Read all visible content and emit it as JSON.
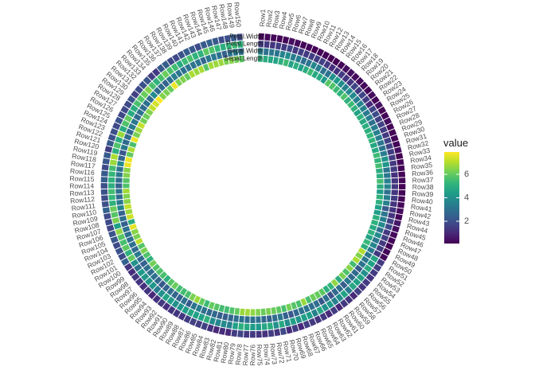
{
  "chart_data": {
    "type": "heatmap",
    "layout": "circular",
    "rows": [
      "Row1",
      "Row2",
      "Row3",
      "Row4",
      "Row5",
      "Row6",
      "Row7",
      "Row8",
      "Row9",
      "Row10",
      "Row11",
      "Row12",
      "Row13",
      "Row14",
      "Row15",
      "Row16",
      "Row17",
      "Row18",
      "Row19",
      "Row20",
      "Row21",
      "Row22",
      "Row23",
      "Row24",
      "Row25",
      "Row26",
      "Row27",
      "Row28",
      "Row29",
      "Row30",
      "Row31",
      "Row32",
      "Row33",
      "Row34",
      "Row35",
      "Row36",
      "Row37",
      "Row38",
      "Row39",
      "Row40",
      "Row41",
      "Row42",
      "Row43",
      "Row44",
      "Row45",
      "Row46",
      "Row47",
      "Row48",
      "Row49",
      "Row50",
      "Row51",
      "Row52",
      "Row53",
      "Row54",
      "Row55",
      "Row56",
      "Row57",
      "Row58",
      "Row59",
      "Row60",
      "Row61",
      "Row62",
      "Row63",
      "Row64",
      "Row65",
      "Row66",
      "Row67",
      "Row68",
      "Row69",
      "Row70",
      "Row71",
      "Row72",
      "Row73",
      "Row74",
      "Row75",
      "Row76",
      "Row77",
      "Row78",
      "Row79",
      "Row80",
      "Row81",
      "Row82",
      "Row83",
      "Row84",
      "Row85",
      "Row86",
      "Row87",
      "Row88",
      "Row89",
      "Row90",
      "Row91",
      "Row92",
      "Row93",
      "Row94",
      "Row95",
      "Row96",
      "Row97",
      "Row98",
      "Row99",
      "Row100",
      "Row101",
      "Row102",
      "Row103",
      "Row104",
      "Row105",
      "Row106",
      "Row107",
      "Row108",
      "Row109",
      "Row110",
      "Row111",
      "Row112",
      "Row113",
      "Row114",
      "Row115",
      "Row116",
      "Row117",
      "Row118",
      "Row119",
      "Row120",
      "Row121",
      "Row122",
      "Row123",
      "Row124",
      "Row125",
      "Row126",
      "Row127",
      "Row128",
      "Row129",
      "Row130",
      "Row131",
      "Row132",
      "Row133",
      "Row134",
      "Row135",
      "Row136",
      "Row137",
      "Row138",
      "Row139",
      "Row140",
      "Row141",
      "Row142",
      "Row143",
      "Row144",
      "Row145",
      "Row146",
      "Row147",
      "Row148",
      "Row149",
      "Row150"
    ],
    "series": [
      {
        "name": "Sepal.Length",
        "values": [
          5.1,
          4.9,
          4.7,
          4.6,
          5.0,
          5.4,
          4.6,
          5.0,
          4.4,
          4.9,
          5.4,
          4.8,
          4.8,
          4.3,
          5.8,
          5.7,
          5.4,
          5.1,
          5.7,
          5.1,
          5.4,
          5.1,
          4.6,
          5.1,
          4.8,
          5.0,
          5.0,
          5.2,
          5.2,
          4.7,
          4.8,
          5.4,
          5.2,
          5.5,
          4.9,
          5.0,
          5.5,
          4.9,
          4.4,
          5.1,
          5.0,
          4.5,
          4.4,
          5.0,
          5.1,
          4.8,
          5.1,
          4.6,
          5.3,
          5.0,
          7.0,
          6.4,
          6.9,
          5.5,
          6.5,
          5.7,
          6.3,
          4.9,
          6.6,
          5.2,
          5.0,
          5.9,
          6.0,
          6.1,
          5.6,
          6.7,
          5.6,
          5.8,
          6.2,
          5.6,
          5.9,
          6.1,
          6.3,
          6.1,
          6.4,
          6.6,
          6.8,
          6.7,
          6.0,
          5.7,
          5.5,
          5.5,
          5.8,
          6.0,
          5.4,
          6.0,
          6.7,
          6.3,
          5.6,
          5.5,
          5.5,
          6.1,
          5.8,
          5.0,
          5.6,
          5.7,
          5.7,
          6.2,
          5.1,
          5.7,
          6.3,
          5.8,
          7.1,
          6.3,
          6.5,
          7.6,
          4.9,
          7.3,
          6.7,
          7.2,
          6.5,
          6.4,
          6.8,
          5.7,
          5.8,
          6.4,
          6.5,
          7.7,
          7.7,
          6.0,
          6.9,
          5.6,
          7.7,
          6.3,
          6.7,
          7.2,
          6.2,
          6.1,
          6.4,
          7.2,
          7.4,
          7.9,
          6.4,
          6.3,
          6.1,
          7.7,
          6.3,
          6.4,
          6.0,
          6.9,
          6.7,
          6.9,
          5.8,
          6.8,
          6.7,
          6.7,
          6.3,
          6.5,
          6.2,
          5.9
        ]
      },
      {
        "name": "Sepal.Width",
        "values": [
          3.5,
          3.0,
          3.2,
          3.1,
          3.6,
          3.9,
          3.4,
          3.4,
          2.9,
          3.1,
          3.7,
          3.4,
          3.0,
          3.0,
          4.0,
          4.4,
          3.9,
          3.5,
          3.8,
          3.8,
          3.4,
          3.7,
          3.6,
          3.3,
          3.4,
          3.0,
          3.4,
          3.5,
          3.4,
          3.2,
          3.1,
          3.4,
          4.1,
          4.2,
          3.1,
          3.2,
          3.5,
          3.6,
          3.0,
          3.4,
          3.5,
          2.3,
          3.2,
          3.5,
          3.8,
          3.0,
          3.8,
          3.2,
          3.7,
          3.3,
          3.2,
          3.2,
          3.1,
          2.3,
          2.8,
          2.8,
          3.3,
          2.4,
          2.9,
          2.7,
          2.0,
          3.0,
          2.2,
          2.9,
          2.9,
          3.1,
          3.0,
          2.7,
          2.2,
          2.5,
          3.2,
          2.8,
          2.5,
          2.8,
          2.9,
          3.0,
          2.8,
          3.0,
          2.9,
          2.6,
          2.4,
          2.4,
          2.7,
          2.7,
          3.0,
          3.4,
          3.1,
          2.3,
          3.0,
          2.5,
          2.6,
          3.0,
          2.6,
          2.3,
          2.7,
          3.0,
          2.9,
          2.9,
          2.5,
          2.8,
          3.3,
          2.7,
          3.0,
          2.9,
          3.0,
          3.0,
          2.5,
          2.9,
          2.5,
          3.6,
          3.2,
          2.7,
          3.0,
          2.5,
          2.8,
          3.2,
          3.0,
          3.8,
          2.6,
          2.2,
          3.2,
          2.8,
          2.8,
          2.7,
          3.3,
          3.2,
          2.8,
          3.0,
          2.8,
          3.0,
          2.8,
          3.8,
          2.8,
          2.8,
          2.6,
          3.0,
          3.4,
          3.1,
          3.0,
          3.1,
          3.1,
          3.1,
          2.7,
          3.2,
          3.3,
          3.0,
          2.5,
          3.0,
          3.4,
          3.0
        ]
      },
      {
        "name": "Petal.Length",
        "values": [
          1.4,
          1.4,
          1.3,
          1.5,
          1.4,
          1.7,
          1.4,
          1.5,
          1.4,
          1.5,
          1.5,
          1.6,
          1.4,
          1.1,
          1.2,
          1.5,
          1.3,
          1.4,
          1.7,
          1.5,
          1.7,
          1.5,
          1.0,
          1.7,
          1.9,
          1.6,
          1.6,
          1.5,
          1.4,
          1.6,
          1.6,
          1.5,
          1.5,
          1.4,
          1.5,
          1.2,
          1.3,
          1.4,
          1.3,
          1.5,
          1.3,
          1.3,
          1.3,
          1.6,
          1.9,
          1.4,
          1.6,
          1.4,
          1.5,
          1.4,
          4.7,
          4.5,
          4.9,
          4.0,
          4.6,
          4.5,
          4.7,
          3.3,
          4.6,
          3.9,
          3.5,
          4.2,
          4.0,
          4.7,
          3.6,
          4.4,
          4.5,
          4.1,
          4.5,
          3.9,
          4.8,
          4.0,
          4.9,
          4.7,
          4.3,
          4.4,
          4.8,
          5.0,
          4.5,
          3.5,
          3.8,
          3.7,
          3.9,
          5.1,
          4.5,
          4.5,
          4.7,
          4.4,
          4.1,
          4.0,
          4.4,
          4.6,
          4.0,
          3.3,
          4.2,
          4.2,
          4.2,
          4.3,
          3.0,
          4.1,
          6.0,
          5.1,
          5.9,
          5.6,
          5.8,
          6.6,
          4.5,
          6.3,
          5.8,
          6.1,
          5.1,
          5.3,
          5.5,
          5.0,
          5.1,
          5.3,
          5.5,
          6.7,
          6.9,
          5.0,
          5.7,
          4.9,
          6.7,
          4.9,
          5.7,
          6.0,
          4.8,
          4.9,
          5.6,
          5.8,
          6.1,
          6.4,
          5.6,
          5.1,
          5.6,
          6.1,
          5.6,
          5.5,
          4.8,
          5.4,
          5.6,
          5.1,
          5.1,
          5.9,
          5.7,
          5.2,
          5.0,
          5.2,
          5.4,
          5.1
        ]
      },
      {
        "name": "Petal.Width",
        "values": [
          0.2,
          0.2,
          0.2,
          0.2,
          0.2,
          0.4,
          0.3,
          0.2,
          0.2,
          0.1,
          0.2,
          0.2,
          0.1,
          0.1,
          0.2,
          0.4,
          0.4,
          0.3,
          0.3,
          0.3,
          0.2,
          0.4,
          0.2,
          0.5,
          0.2,
          0.2,
          0.4,
          0.2,
          0.2,
          0.2,
          0.2,
          0.4,
          0.1,
          0.2,
          0.2,
          0.2,
          0.2,
          0.1,
          0.2,
          0.2,
          0.3,
          0.3,
          0.2,
          0.6,
          0.4,
          0.3,
          0.2,
          0.2,
          0.2,
          0.2,
          1.4,
          1.5,
          1.5,
          1.3,
          1.5,
          1.3,
          1.6,
          1.0,
          1.3,
          1.4,
          1.0,
          1.5,
          1.0,
          1.4,
          1.3,
          1.4,
          1.5,
          1.0,
          1.5,
          1.1,
          1.8,
          1.3,
          1.5,
          1.2,
          1.3,
          1.4,
          1.4,
          1.7,
          1.5,
          1.0,
          1.1,
          1.0,
          1.2,
          1.6,
          1.5,
          1.6,
          1.5,
          1.3,
          1.3,
          1.3,
          1.2,
          1.4,
          1.2,
          1.0,
          1.3,
          1.2,
          1.3,
          1.3,
          1.1,
          1.3,
          2.5,
          1.9,
          2.1,
          1.8,
          2.2,
          2.1,
          1.7,
          1.8,
          1.8,
          2.5,
          2.0,
          1.9,
          2.1,
          2.0,
          2.4,
          2.3,
          1.8,
          2.2,
          2.3,
          1.5,
          2.3,
          2.0,
          2.0,
          1.8,
          2.1,
          1.8,
          1.8,
          1.8,
          2.1,
          1.6,
          1.9,
          2.0,
          2.2,
          1.5,
          1.4,
          2.3,
          2.4,
          1.8,
          1.8,
          2.1,
          2.4,
          2.3,
          1.9,
          2.3,
          2.5,
          2.3,
          1.9,
          2.0,
          2.3,
          1.8
        ]
      }
    ],
    "legend": {
      "title": "value",
      "placement": "right",
      "ticks": [
        2,
        4,
        6
      ],
      "range": [
        0.1,
        7.9
      ],
      "colors": [
        "#440154",
        "#482878",
        "#3e4a89",
        "#31688e",
        "#26828e",
        "#1f9e89",
        "#35b779",
        "#6ece58",
        "#b5de2b",
        "#fde725"
      ]
    }
  }
}
